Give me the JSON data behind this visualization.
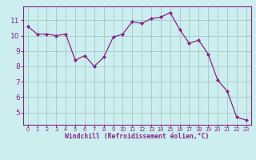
{
  "x": [
    0,
    1,
    2,
    3,
    4,
    5,
    6,
    7,
    8,
    9,
    10,
    11,
    12,
    13,
    14,
    15,
    16,
    17,
    18,
    19,
    20,
    21,
    22,
    23
  ],
  "y": [
    10.6,
    10.1,
    10.1,
    10.0,
    10.1,
    8.4,
    8.7,
    8.0,
    8.6,
    9.9,
    10.1,
    10.9,
    10.8,
    11.1,
    11.2,
    11.5,
    10.4,
    9.5,
    9.7,
    8.8,
    7.1,
    6.4,
    4.7,
    4.5
  ],
  "line_color": "#882288",
  "marker": "D",
  "marker_size": 2.0,
  "bg_color": "#cceeee",
  "grid_color": "#aacccc",
  "xlabel": "Windchill (Refroidissement éolien,°C)",
  "xlabel_color": "#882288",
  "tick_color": "#882288",
  "ylabel_ticks": [
    5,
    6,
    7,
    8,
    9,
    10,
    11
  ],
  "xlim": [
    -0.5,
    23.5
  ],
  "ylim": [
    4.2,
    11.9
  ],
  "spine_color": "#882288",
  "xtick_labels": [
    "0",
    "1",
    "2",
    "3",
    "4",
    "5",
    "6",
    "7",
    "8",
    "9",
    "10",
    "11",
    "12",
    "13",
    "14",
    "15",
    "16",
    "17",
    "18",
    "19",
    "20",
    "21",
    "22",
    "23"
  ]
}
